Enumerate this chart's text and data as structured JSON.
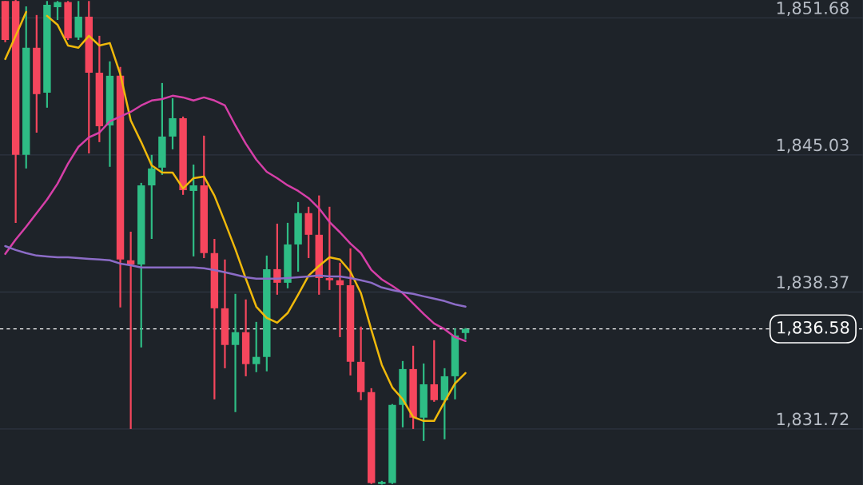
{
  "chart_data": {
    "type": "candlestick",
    "categories": [
      null,
      null,
      null,
      null,
      null,
      null,
      null,
      null,
      null,
      null,
      null,
      null,
      null,
      null,
      null,
      null,
      null,
      null,
      null,
      null,
      null,
      null,
      null,
      null,
      null,
      null,
      null,
      null,
      null,
      null,
      null,
      null,
      null,
      null,
      null,
      null,
      null,
      null,
      null,
      null,
      null,
      null,
      null,
      null,
      null
    ],
    "ohlc": [
      [
        1852.5,
        1852.5,
        1850.5,
        1850.61
      ],
      [
        1852.5,
        1852.55,
        1841.73,
        1845.03
      ],
      [
        1845.03,
        1852.24,
        1844.37,
        1850.23
      ],
      [
        1850.23,
        1851.82,
        1846.11,
        1847.98
      ],
      [
        1848.05,
        1852.5,
        1847.32,
        1852.32
      ],
      [
        1852.2,
        1852.5,
        1851.58,
        1852.45
      ],
      [
        1852.45,
        1852.5,
        1850.61,
        1850.69
      ],
      [
        1850.73,
        1852.5,
        1850.61,
        1851.74
      ],
      [
        1851.74,
        1852.5,
        1845.1,
        1849.02
      ],
      [
        1849.02,
        1850.81,
        1845.65,
        1846.42
      ],
      [
        1846.46,
        1849.57,
        1844.45,
        1848.87
      ],
      [
        1848.87,
        1849.3,
        1837.62,
        1839.95
      ],
      [
        1839.91,
        1841.3,
        1831.72,
        1839.71
      ],
      [
        1839.71,
        1843.67,
        1835.68,
        1843.55
      ],
      [
        1843.55,
        1845.03,
        1840.95,
        1844.37
      ],
      [
        1844.41,
        1848.52,
        1844.06,
        1845.92
      ],
      [
        1845.92,
        1847.78,
        1845.3,
        1846.81
      ],
      [
        1846.81,
        1846.89,
        1843.09,
        1843.32
      ],
      [
        1843.28,
        1844.56,
        1840.1,
        1843.55
      ],
      [
        1843.55,
        1845.96,
        1840.02,
        1840.26
      ],
      [
        1840.26,
        1840.95,
        1833.16,
        1837.58
      ],
      [
        1837.58,
        1839.95,
        1834.67,
        1835.8
      ],
      [
        1835.8,
        1838.28,
        1832.54,
        1836.42
      ],
      [
        1836.42,
        1838.01,
        1834.28,
        1834.87
      ],
      [
        1834.87,
        1836.92,
        1834.48,
        1835.22
      ],
      [
        1835.22,
        1840.14,
        1834.52,
        1839.48
      ],
      [
        1839.48,
        1841.69,
        1838.24,
        1838.82
      ],
      [
        1838.82,
        1841.73,
        1838.55,
        1840.68
      ],
      [
        1840.68,
        1842.74,
        1839.36,
        1842.2
      ],
      [
        1842.2,
        1842.51,
        1840.02,
        1841.15
      ],
      [
        1841.15,
        1843.06,
        1838.24,
        1839.05
      ],
      [
        1839.05,
        1842.51,
        1838.47,
        1838.94
      ],
      [
        1838.94,
        1839.79,
        1836.18,
        1838.7
      ],
      [
        1838.7,
        1840.49,
        1834.32,
        1834.98
      ],
      [
        1834.98,
        1836.69,
        1833.12,
        1833.51
      ],
      [
        1833.51,
        1833.7,
        1829.05,
        1829.1
      ],
      [
        1829.05,
        1829.2,
        1829.02,
        1829.15
      ],
      [
        1829.1,
        1832.93,
        1829.05,
        1832.89
      ],
      [
        1832.89,
        1835.02,
        1831.8,
        1834.63
      ],
      [
        1834.63,
        1835.76,
        1831.72,
        1832.27
      ],
      [
        1832.27,
        1834.9,
        1831.14,
        1833.89
      ],
      [
        1833.89,
        1836.03,
        1833.04,
        1833.12
      ],
      [
        1833.12,
        1834.67,
        1831.22,
        1834.28
      ],
      [
        1834.28,
        1836.61,
        1833.16,
        1836.26
      ],
      [
        1836.38,
        1836.62,
        1836.07,
        1836.58
      ]
    ],
    "colors": [
      "#f6465d",
      "#f6465d",
      "#2ebd85",
      "#f6465d",
      "#2ebd85",
      "#2ebd85",
      "#f6465d",
      "#2ebd85",
      "#f6465d",
      "#f6465d",
      "#2ebd85",
      "#f6465d",
      "#f6465d",
      "#2ebd85",
      "#2ebd85",
      "#2ebd85",
      "#2ebd85",
      "#f6465d",
      "#2ebd85",
      "#f6465d",
      "#f6465d",
      "#f6465d",
      "#2ebd85",
      "#f6465d",
      "#2ebd85",
      "#2ebd85",
      "#f6465d",
      "#2ebd85",
      "#2ebd85",
      "#f6465d",
      "#f6465d",
      "#f6465d",
      "#f6465d",
      "#f6465d",
      "#f6465d",
      "#f6465d",
      "#2ebd85",
      "#2ebd85",
      "#2ebd85",
      "#f6465d",
      "#2ebd85",
      "#f6465d",
      "#2ebd85",
      "#2ebd85",
      "#2ebd85"
    ],
    "series": [
      {
        "type": "line",
        "color": "#f0b90b",
        "values": [
          1849.68,
          1850.81,
          1851.97,
          null,
          1851.78,
          1851.35,
          1850.34,
          1850.23,
          1850.81,
          1850.34,
          1850.46,
          1848.95,
          1846.7,
          1845.65,
          1844.52,
          1844.17,
          1844.17,
          1843.4,
          1843.9,
          1843.98,
          1843.05,
          1841.77,
          1840.45,
          1839.02,
          1837.66,
          1837.11,
          1836.88,
          1837.35,
          1838.24,
          1839.17,
          1839.64,
          1840.06,
          1839.95,
          1839.36,
          1838.32,
          1836.53,
          1834.83,
          1833.74,
          1833.16,
          1832.3,
          1832.11,
          1832.11,
          1833.04,
          1833.93,
          1834.44
        ]
      },
      {
        "type": "line",
        "color": "#d63fa8",
        "values": [
          1840.22,
          1840.92,
          1841.54,
          1842.2,
          1842.86,
          1843.63,
          1844.6,
          1845.42,
          1845.88,
          1846.11,
          1846.66,
          1846.89,
          1847.12,
          1847.43,
          1847.67,
          1847.74,
          1847.9,
          1847.82,
          1847.67,
          1847.82,
          1847.67,
          1847.43,
          1846.46,
          1845.57,
          1844.8,
          1844.21,
          1843.9,
          1843.55,
          1843.28,
          1842.93,
          1842.43,
          1841.77,
          1841.27,
          1840.72,
          1840.26,
          1839.44,
          1838.98,
          1838.67,
          1838.32,
          1837.81,
          1837.31,
          1836.84,
          1836.57,
          1836.18,
          1835.99
        ]
      },
      {
        "type": "line",
        "color": "#8c6cc7",
        "values": [
          1840.6,
          1840.41,
          1840.26,
          1840.14,
          1840.1,
          1840.06,
          1840.06,
          1840.02,
          1839.98,
          1839.95,
          1839.91,
          1839.75,
          1839.67,
          1839.56,
          1839.56,
          1839.56,
          1839.56,
          1839.56,
          1839.56,
          1839.52,
          1839.44,
          1839.33,
          1839.21,
          1839.09,
          1839.02,
          1839.02,
          1839.02,
          1839.05,
          1839.09,
          1839.13,
          1839.17,
          1839.13,
          1839.13,
          1839.05,
          1838.94,
          1838.82,
          1838.59,
          1838.47,
          1838.36,
          1838.28,
          1838.16,
          1838.05,
          1837.93,
          1837.77,
          1837.66
        ]
      }
    ],
    "ylim": [
      1829.0,
      1852.55
    ],
    "yticks": [
      {
        "value": 1831.72,
        "label": "1,831.72"
      },
      {
        "value": 1838.37,
        "label": "1,838.37"
      },
      {
        "value": 1845.03,
        "label": "1,845.03"
      },
      {
        "value": 1851.68,
        "label": "1,851.68"
      }
    ],
    "ref_lines": [
      {
        "axis": "y",
        "value": 1836.58,
        "label": "1,836.58",
        "color": "#ffffff",
        "line_style": "dashed"
      }
    ],
    "grid": "y"
  }
}
